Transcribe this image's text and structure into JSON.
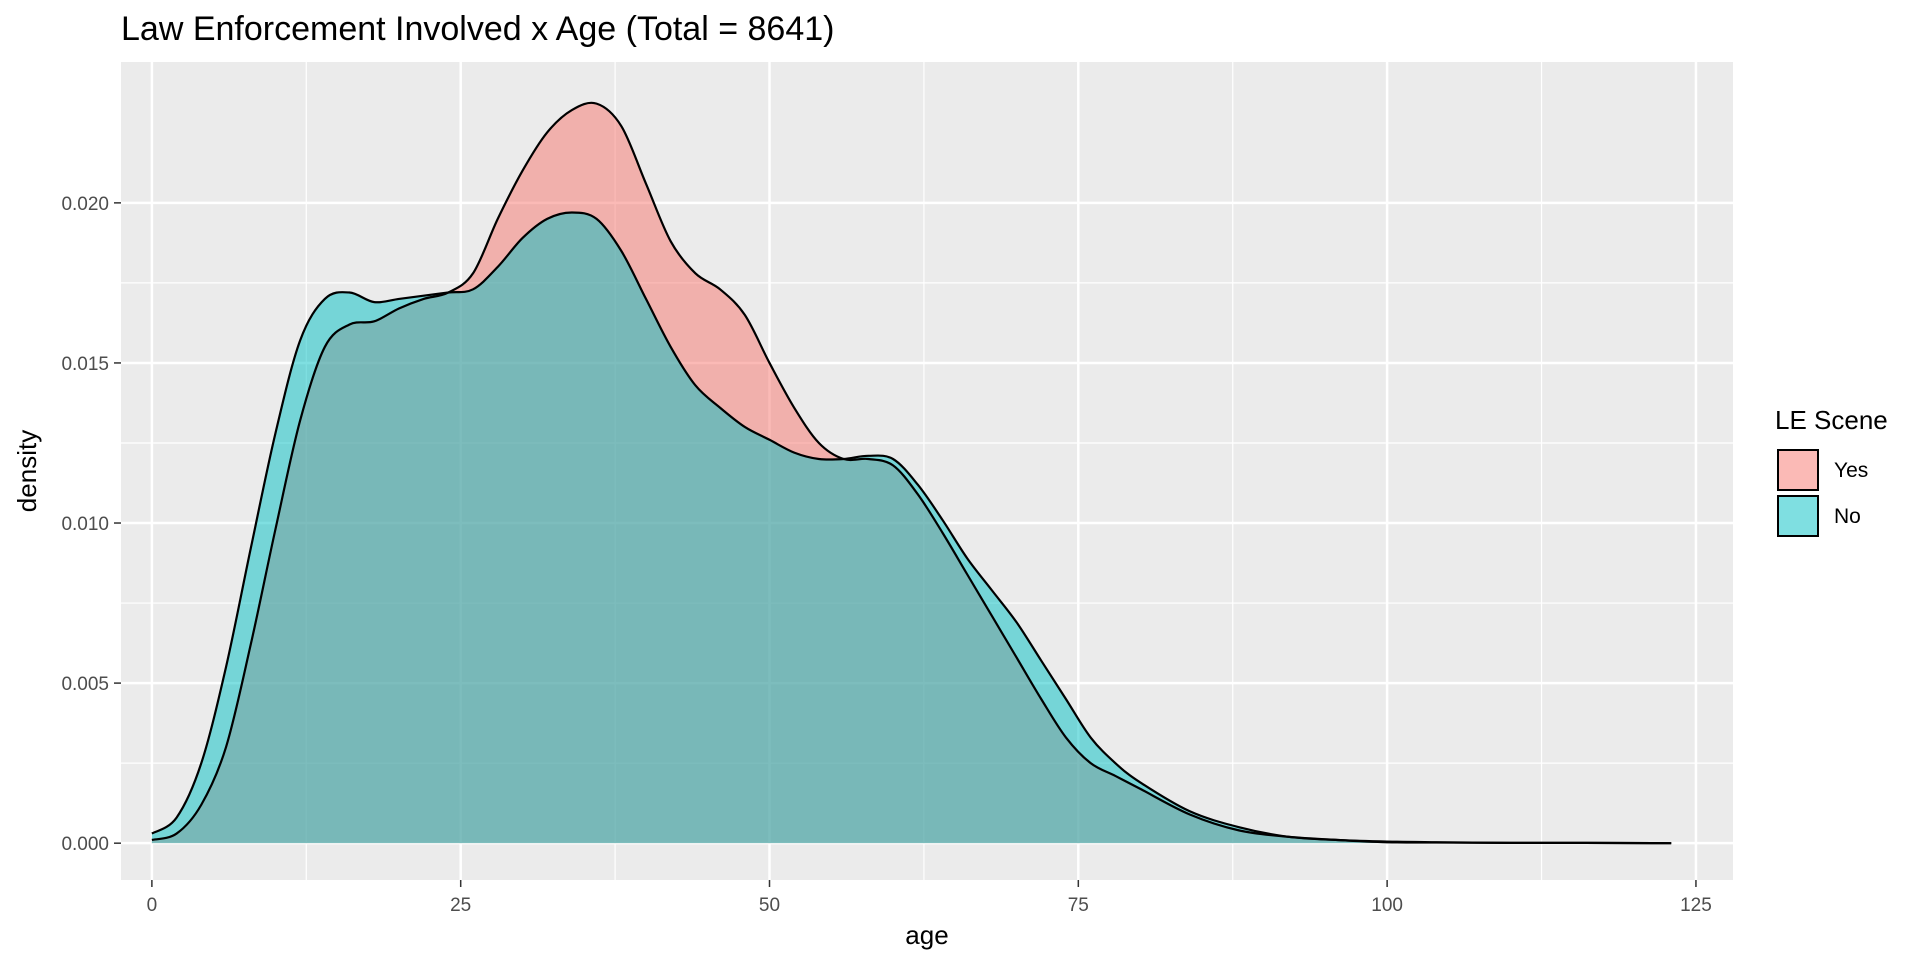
{
  "chart_data": {
    "type": "area",
    "title": "Law Enforcement Involved x Age (Total = 8641)",
    "xlabel": "age",
    "ylabel": "density",
    "xlim": [
      -2.5,
      128
    ],
    "ylim": [
      -0.00115,
      0.0244
    ],
    "x_ticks": [
      0,
      25,
      50,
      75,
      100,
      125
    ],
    "x_tick_labels": [
      "0",
      "25",
      "50",
      "75",
      "100",
      "125"
    ],
    "y_ticks": [
      0.0,
      0.005,
      0.01,
      0.015,
      0.02
    ],
    "y_tick_labels": [
      "0.000",
      "0.005",
      "0.010",
      "0.015",
      "0.020"
    ],
    "grid": true,
    "legend": {
      "title": "LE Scene",
      "position": "right"
    },
    "series": [
      {
        "name": "Yes",
        "color": "#F8766D",
        "x": [
          0,
          2,
          4,
          6,
          8,
          10,
          12,
          14,
          16,
          18,
          20,
          22,
          24,
          26,
          28,
          30,
          32,
          34,
          36,
          38,
          40,
          42,
          44,
          46,
          48,
          50,
          52,
          54,
          56,
          58,
          60,
          62,
          64,
          66,
          68,
          70,
          72,
          74,
          76,
          78,
          80,
          84,
          88,
          92,
          96,
          100,
          104,
          110,
          116,
          123
        ],
        "y": [
          0.0001,
          0.0003,
          0.0012,
          0.003,
          0.0062,
          0.0098,
          0.0132,
          0.0155,
          0.0162,
          0.0163,
          0.0167,
          0.017,
          0.0172,
          0.0178,
          0.0195,
          0.021,
          0.0222,
          0.0229,
          0.0231,
          0.0224,
          0.0206,
          0.0188,
          0.0178,
          0.0173,
          0.0165,
          0.015,
          0.0136,
          0.0125,
          0.012,
          0.012,
          0.0118,
          0.0109,
          0.0097,
          0.0084,
          0.0071,
          0.0058,
          0.0045,
          0.0033,
          0.0025,
          0.0021,
          0.0017,
          0.0009,
          0.0004,
          0.0002,
          0.0001,
          3e-05,
          2e-05,
          1e-05,
          1e-05,
          0.0
        ]
      },
      {
        "name": "No",
        "color": "#00BFC4",
        "x": [
          0,
          2,
          4,
          6,
          8,
          10,
          12,
          14,
          16,
          18,
          20,
          22,
          24,
          26,
          28,
          30,
          32,
          34,
          36,
          38,
          40,
          42,
          44,
          46,
          48,
          50,
          52,
          54,
          56,
          58,
          60,
          62,
          64,
          66,
          68,
          70,
          72,
          74,
          76,
          78,
          80,
          84,
          88,
          92,
          96,
          100,
          104,
          110,
          116,
          123
        ],
        "y": [
          0.0003,
          0.0008,
          0.0025,
          0.0055,
          0.0092,
          0.0128,
          0.0157,
          0.017,
          0.0172,
          0.0169,
          0.017,
          0.0171,
          0.0172,
          0.0173,
          0.018,
          0.0189,
          0.0195,
          0.0197,
          0.0195,
          0.0185,
          0.017,
          0.0155,
          0.0143,
          0.0136,
          0.013,
          0.0126,
          0.0122,
          0.012,
          0.012,
          0.0121,
          0.012,
          0.0112,
          0.0101,
          0.0089,
          0.0079,
          0.0069,
          0.0057,
          0.0045,
          0.0033,
          0.0025,
          0.0019,
          0.001,
          0.0005,
          0.0002,
          0.0001,
          5e-05,
          3e-05,
          1e-05,
          1e-05,
          0.0
        ]
      }
    ]
  }
}
